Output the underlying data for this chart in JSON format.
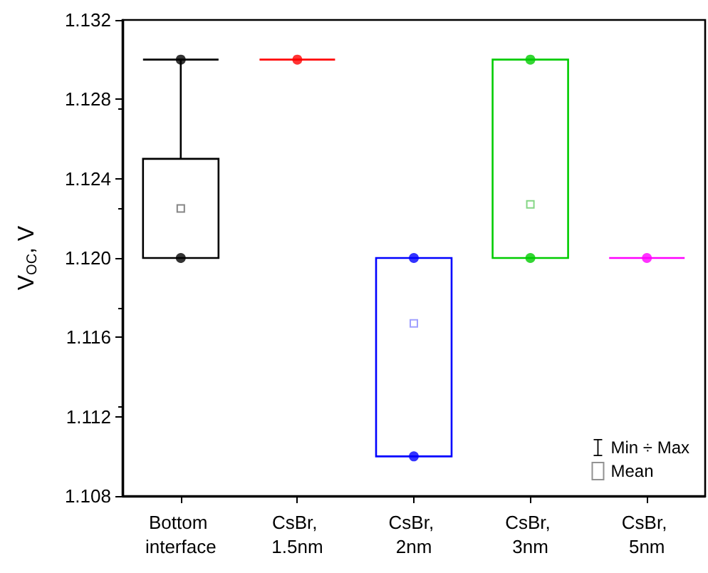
{
  "chart_data": {
    "type": "box",
    "ylabel": "V$_{OC}$, V",
    "categories": [
      "Bottom interface",
      "CsBr, 1.5nm",
      "CsBr, 2nm",
      "CsBr, 3nm",
      "CsBr, 5nm"
    ],
    "ylim": [
      1.108,
      1.132
    ],
    "yticks": [
      {
        "value": 1.108,
        "label": "1.108"
      },
      {
        "value": 1.112,
        "label": "1.112"
      },
      {
        "value": 1.116,
        "label": "1.116"
      },
      {
        "value": 1.12,
        "label": "1.120"
      },
      {
        "value": 1.124,
        "label": "1.124"
      },
      {
        "value": 1.128,
        "label": "1.128"
      },
      {
        "value": 1.132,
        "label": "1.132"
      }
    ],
    "grid": false,
    "legend": "bottom right",
    "series": [
      {
        "name": "Min ÷ Max",
        "color": "#000000",
        "colors": [
          "#000000",
          "#ff0000",
          "#0000ff",
          "#00cc00",
          "#ff00ff"
        ],
        "boxes": [
          {
            "low": 1.12,
            "q1": 1.12,
            "median": 1.12,
            "q3": 1.125,
            "high": 1.13
          },
          {
            "low": 1.13,
            "q1": 1.13,
            "median": 1.13,
            "q3": 1.13,
            "high": 1.13
          },
          {
            "low": 1.11,
            "q1": 1.11,
            "median": 1.12,
            "q3": 1.12,
            "high": 1.12
          },
          {
            "low": 1.12,
            "q1": 1.12,
            "median": 1.12,
            "q3": 1.13,
            "high": 1.13
          },
          {
            "low": 1.12,
            "q1": 1.12,
            "median": 1.12,
            "q3": 1.12,
            "high": 1.12
          }
        ]
      },
      {
        "type": "scatter",
        "name": "Mean",
        "marker": "square",
        "color": "#777777",
        "x": [
          "Bottom interface",
          "CsBr, 2nm",
          "CsBr, 3nm"
        ],
        "values": [
          1.1225,
          1.1167,
          1.1227
        ],
        "colors": [
          "#666666",
          "#8888ff",
          "#66cc66"
        ]
      },
      {
        "type": "scatter",
        "marker": "circle",
        "x": [
          "Bottom interface",
          "Bottom interface",
          "CsBr, 1.5nm",
          "CsBr, 2nm",
          "CsBr, 2nm",
          "CsBr, 3nm",
          "CsBr, 3nm",
          "CsBr, 5nm"
        ],
        "values": [
          1.13,
          1.12,
          1.13,
          1.12,
          1.11,
          1.13,
          1.12,
          1.12
        ],
        "colors": [
          "#000000",
          "#000000",
          "#ff0000",
          "#0000ff",
          "#0000ff",
          "#00cc00",
          "#00cc00",
          "#ff00ff"
        ]
      }
    ]
  }
}
